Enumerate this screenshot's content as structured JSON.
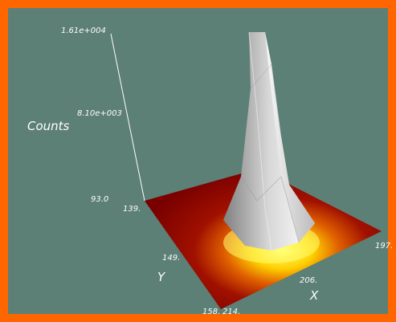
{
  "colors": {
    "border": "#ff6600",
    "background": "#5c7f76",
    "text": "#ffffff"
  },
  "plot": {
    "z_axis": {
      "title": "Counts",
      "ticks": [
        "1.61e+004",
        "8.10e+003",
        "93.0"
      ]
    },
    "y_axis": {
      "title": "Y",
      "ticks": [
        "139.",
        "149.",
        "158."
      ]
    },
    "x_axis": {
      "title": "X",
      "ticks": [
        "214.",
        "206.",
        "197."
      ]
    }
  }
}
